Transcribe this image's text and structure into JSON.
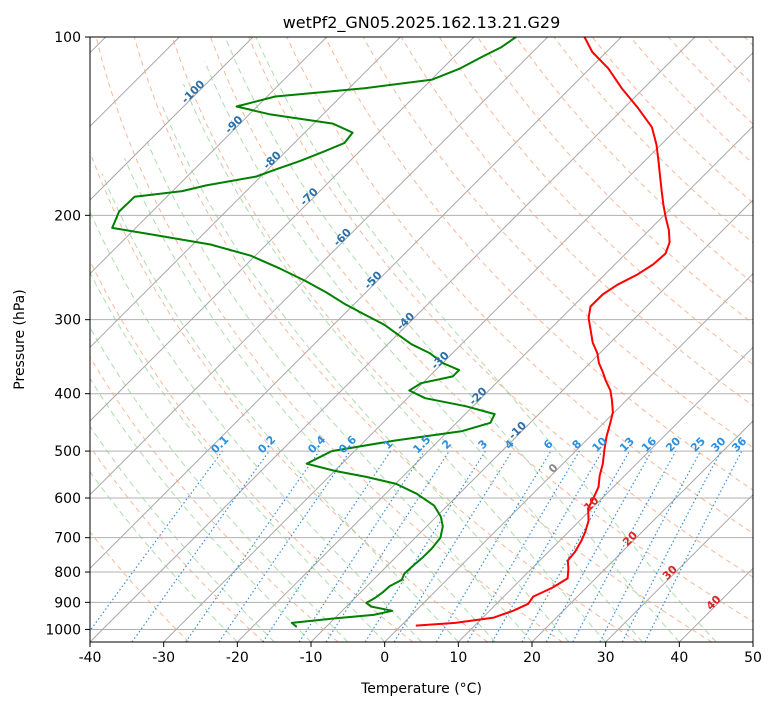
{
  "chart_data": {
    "type": "line",
    "title": "wetPf2_GN05.2025.162.13.21.G29",
    "xlabel": "Temperature (°C)",
    "ylabel": "Pressure (hPa)",
    "xlim": [
      -40,
      50
    ],
    "ylim": [
      1050,
      100
    ],
    "y_scale": "log",
    "skew_t": true,
    "grid": true,
    "x_ticks": [
      -40,
      -30,
      -20,
      -10,
      0,
      10,
      20,
      30,
      40,
      50
    ],
    "y_ticks": [
      100,
      200,
      300,
      400,
      500,
      600,
      700,
      800,
      900,
      1000
    ],
    "series": [
      {
        "color": "#ff0000",
        "points": [
          [
            2.0,
            985
          ],
          [
            7.0,
            975
          ],
          [
            11.5,
            955
          ],
          [
            13.2,
            930
          ],
          [
            14.3,
            905
          ],
          [
            14.0,
            880
          ],
          [
            15.4,
            850
          ],
          [
            16.2,
            820
          ],
          [
            15.0,
            790
          ],
          [
            13.8,
            765
          ],
          [
            13.6,
            740
          ],
          [
            13.0,
            710
          ],
          [
            12.3,
            685
          ],
          [
            11.2,
            655
          ],
          [
            9.5,
            625
          ],
          [
            8.8,
            600
          ],
          [
            8.0,
            575
          ],
          [
            6.6,
            550
          ],
          [
            5.4,
            525
          ],
          [
            3.7,
            497
          ],
          [
            2.2,
            472
          ],
          [
            1.0,
            450
          ],
          [
            -0.2,
            430
          ],
          [
            -2.0,
            410
          ],
          [
            -3.5,
            395
          ],
          [
            -5.5,
            380
          ],
          [
            -7.0,
            368
          ],
          [
            -8.8,
            355
          ],
          [
            -10.3,
            342
          ],
          [
            -12.4,
            328
          ],
          [
            -14.3,
            313
          ],
          [
            -16.3,
            298
          ],
          [
            -17.6,
            285
          ],
          [
            -17.6,
            272
          ],
          [
            -16.9,
            262
          ],
          [
            -15.6,
            252
          ],
          [
            -14.8,
            242
          ],
          [
            -14.6,
            232
          ],
          [
            -15.6,
            222
          ],
          [
            -17.3,
            212
          ],
          [
            -19.4,
            202
          ],
          [
            -21.5,
            192
          ],
          [
            -23.6,
            182
          ],
          [
            -25.8,
            172
          ],
          [
            -28.1,
            162
          ],
          [
            -30.6,
            152
          ],
          [
            -33.6,
            142
          ],
          [
            -38.0,
            132
          ],
          [
            -43.0,
            122
          ],
          [
            -47.5,
            113
          ],
          [
            -51.9,
            106
          ],
          [
            -55.0,
            100
          ]
        ]
      },
      {
        "color": "#008000",
        "points": [
          [
            -14.0,
            990
          ],
          [
            -15.2,
            975
          ],
          [
            -10.0,
            958
          ],
          [
            -5.2,
            945
          ],
          [
            -3.2,
            930
          ],
          [
            -6.6,
            915
          ],
          [
            -7.8,
            902
          ],
          [
            -7.3,
            885
          ],
          [
            -7.0,
            865
          ],
          [
            -6.9,
            845
          ],
          [
            -6.1,
            825
          ],
          [
            -6.6,
            805
          ],
          [
            -6.5,
            780
          ],
          [
            -6.3,
            755
          ],
          [
            -6.3,
            730
          ],
          [
            -6.6,
            700
          ],
          [
            -7.8,
            670
          ],
          [
            -9.4,
            645
          ],
          [
            -11.8,
            618
          ],
          [
            -15.8,
            590
          ],
          [
            -19.9,
            568
          ],
          [
            -24.8,
            553
          ],
          [
            -30.0,
            540
          ],
          [
            -34.8,
            525
          ],
          [
            -33.1,
            500
          ],
          [
            -26.0,
            480
          ],
          [
            -18.2,
            463
          ],
          [
            -15.4,
            448
          ],
          [
            -16.0,
            433
          ],
          [
            -21.0,
            420
          ],
          [
            -27.6,
            407
          ],
          [
            -30.8,
            395
          ],
          [
            -30.2,
            384
          ],
          [
            -26.8,
            374
          ],
          [
            -26.8,
            365
          ],
          [
            -30.0,
            355
          ],
          [
            -33.0,
            342
          ],
          [
            -36.8,
            330
          ],
          [
            -39.9,
            318
          ],
          [
            -43.1,
            306
          ],
          [
            -47.2,
            294
          ],
          [
            -51.4,
            282
          ],
          [
            -55.3,
            270
          ],
          [
            -59.8,
            258
          ],
          [
            -64.9,
            246
          ],
          [
            -70.6,
            234
          ],
          [
            -77.6,
            224
          ],
          [
            -87.4,
            215
          ],
          [
            -93.2,
            210
          ],
          [
            -94.5,
            197
          ],
          [
            -94.4,
            186
          ],
          [
            -88.7,
            182
          ],
          [
            -86.2,
            178
          ],
          [
            -80.6,
            172
          ],
          [
            -78.8,
            167
          ],
          [
            -76.8,
            162
          ],
          [
            -74.8,
            156
          ],
          [
            -73.2,
            151
          ],
          [
            -73.5,
            145
          ],
          [
            -77.4,
            140
          ],
          [
            -87.3,
            135
          ],
          [
            -92.8,
            131
          ],
          [
            -88.9,
            126
          ],
          [
            -77.9,
            122
          ],
          [
            -69.9,
            118
          ],
          [
            -67.6,
            113
          ],
          [
            -66.2,
            108
          ],
          [
            -64.9,
            104
          ],
          [
            -64.3,
            100
          ]
        ]
      }
    ],
    "dry_adiabat_labels": [
      "-100",
      "-90",
      "-80",
      "-70",
      "-60",
      "-50",
      "-40",
      "-30",
      "-20",
      "-10"
    ],
    "moist_adiabat_labels": [
      "0",
      "10",
      "20",
      "30",
      "40"
    ],
    "mixing_ratio_labels": [
      "0.1",
      "0.2",
      "0.4",
      "0.6",
      "1",
      "1.5",
      "2",
      "3",
      "4",
      "6",
      "8",
      "10",
      "13",
      "16",
      "20",
      "25",
      "30",
      "36"
    ],
    "colors": {
      "isotherm": "#808080",
      "isobar": "#aaaaaa",
      "dry_adiabat": "#f4a07a",
      "moist_adiabat": "#8ccf8c",
      "mixing_ratio": "#3a8fd8",
      "dry_adiabat_label": "#2a6fa8",
      "mixing_ratio_label": "#2a8fe0",
      "moist_adiabat_label": "#d62728",
      "zero_label": "#888888"
    }
  }
}
